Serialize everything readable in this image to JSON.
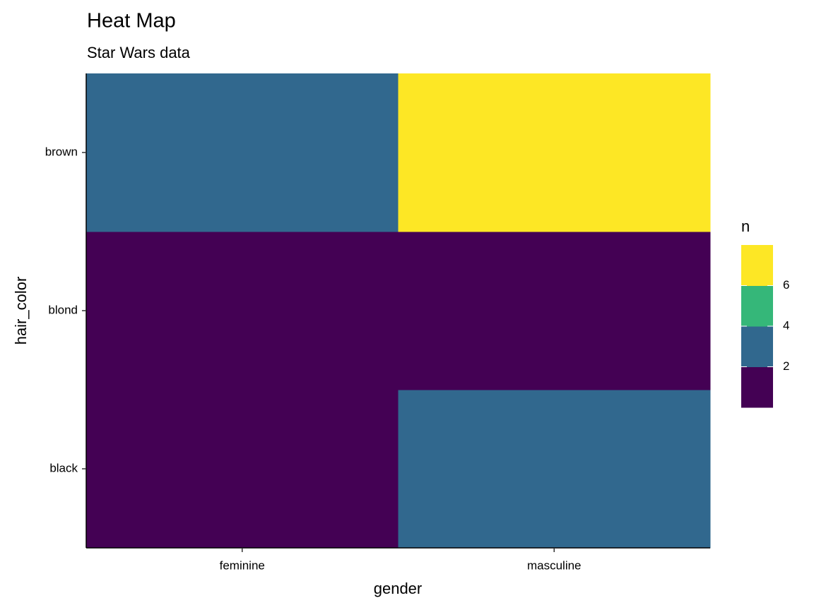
{
  "chart_data": {
    "type": "heatmap",
    "title": "Heat Map",
    "subtitle": "Star Wars data",
    "x_label": "gender",
    "y_label": "hair_color",
    "x_categories": [
      "feminine",
      "masculine"
    ],
    "y_categories": [
      "black",
      "blond",
      "brown"
    ],
    "values": [
      [
        1,
        3
      ],
      [
        1,
        1
      ],
      [
        3,
        7
      ]
    ],
    "legend_title": "n",
    "legend_breaks": [
      2,
      4,
      6
    ],
    "colors": [
      "#440154",
      "#31688e",
      "#35b779",
      "#fde725"
    ]
  }
}
